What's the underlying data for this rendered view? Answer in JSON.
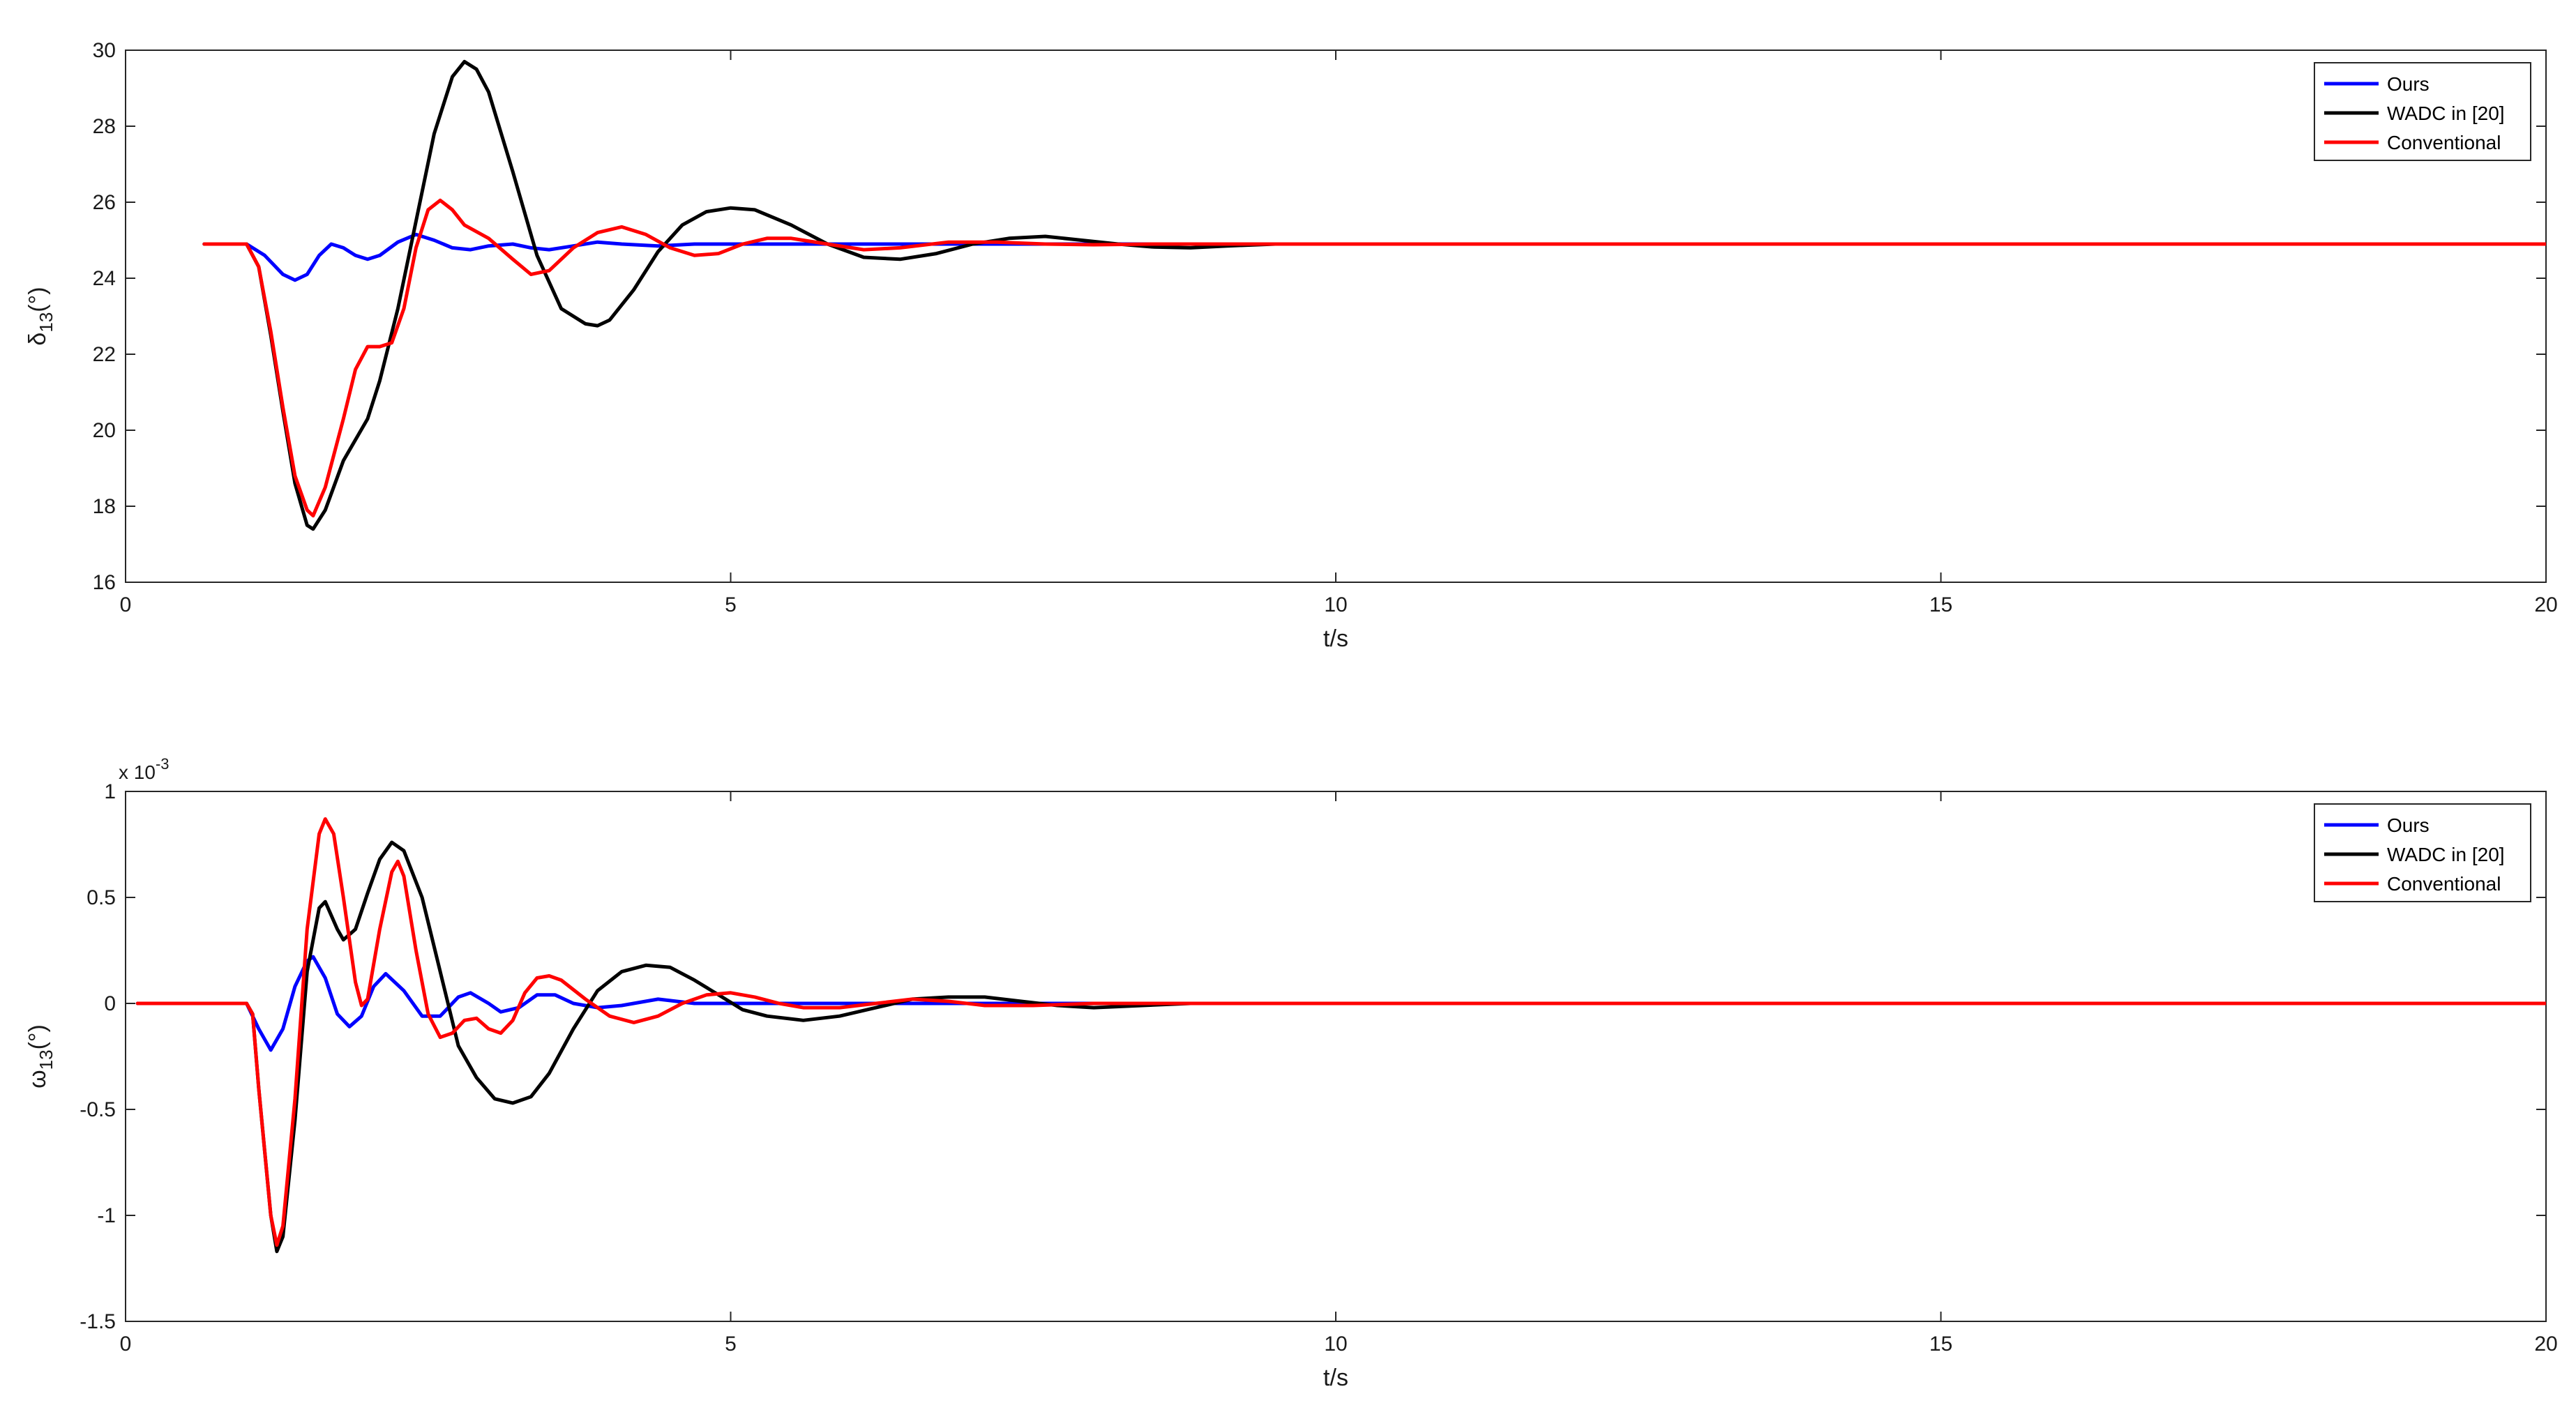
{
  "chart_data": [
    {
      "type": "line",
      "title": "",
      "xlabel": "t/s",
      "ylabel_main": "δ",
      "ylabel_sub": "13",
      "ylabel_tail": "(°)",
      "xlim": [
        0,
        20
      ],
      "ylim": [
        16,
        30
      ],
      "xticks": [
        0,
        5,
        10,
        15,
        20
      ],
      "yticks": [
        16,
        18,
        20,
        22,
        24,
        26,
        28,
        30
      ],
      "grid": false,
      "legend_position": "top-right",
      "series": [
        {
          "name": "Ours",
          "color": "#0000ff",
          "points": [
            [
              0.65,
              24.9
            ],
            [
              1.0,
              24.9
            ],
            [
              1.15,
              24.6
            ],
            [
              1.3,
              24.1
            ],
            [
              1.4,
              23.95
            ],
            [
              1.5,
              24.1
            ],
            [
              1.6,
              24.6
            ],
            [
              1.7,
              24.9
            ],
            [
              1.8,
              24.8
            ],
            [
              1.9,
              24.6
            ],
            [
              2.0,
              24.5
            ],
            [
              2.1,
              24.6
            ],
            [
              2.25,
              24.95
            ],
            [
              2.4,
              25.15
            ],
            [
              2.55,
              25.0
            ],
            [
              2.7,
              24.8
            ],
            [
              2.85,
              24.75
            ],
            [
              3.0,
              24.85
            ],
            [
              3.2,
              24.9
            ],
            [
              3.35,
              24.8
            ],
            [
              3.5,
              24.75
            ],
            [
              3.7,
              24.85
            ],
            [
              3.9,
              24.95
            ],
            [
              4.1,
              24.9
            ],
            [
              4.4,
              24.85
            ],
            [
              4.7,
              24.9
            ],
            [
              5.0,
              24.9
            ],
            [
              6.0,
              24.9
            ],
            [
              7.0,
              24.9
            ],
            [
              9.0,
              24.9
            ],
            [
              10.5,
              24.9
            ],
            [
              20.0,
              24.9
            ]
          ]
        },
        {
          "name": "WADC in [20]",
          "color": "#000000",
          "points": [
            [
              0.65,
              24.9
            ],
            [
              1.0,
              24.9
            ],
            [
              1.1,
              24.3
            ],
            [
              1.2,
              22.5
            ],
            [
              1.3,
              20.5
            ],
            [
              1.4,
              18.6
            ],
            [
              1.5,
              17.5
            ],
            [
              1.55,
              17.4
            ],
            [
              1.65,
              17.9
            ],
            [
              1.8,
              19.2
            ],
            [
              2.0,
              20.3
            ],
            [
              2.1,
              21.3
            ],
            [
              2.25,
              23.2
            ],
            [
              2.4,
              25.5
            ],
            [
              2.55,
              27.8
            ],
            [
              2.7,
              29.3
            ],
            [
              2.8,
              29.7
            ],
            [
              2.9,
              29.5
            ],
            [
              3.0,
              28.9
            ],
            [
              3.2,
              26.8
            ],
            [
              3.4,
              24.6
            ],
            [
              3.6,
              23.2
            ],
            [
              3.8,
              22.8
            ],
            [
              3.9,
              22.75
            ],
            [
              4.0,
              22.9
            ],
            [
              4.2,
              23.7
            ],
            [
              4.4,
              24.7
            ],
            [
              4.6,
              25.4
            ],
            [
              4.8,
              25.75
            ],
            [
              5.0,
              25.85
            ],
            [
              5.2,
              25.8
            ],
            [
              5.5,
              25.4
            ],
            [
              5.8,
              24.9
            ],
            [
              6.1,
              24.55
            ],
            [
              6.4,
              24.5
            ],
            [
              6.7,
              24.65
            ],
            [
              7.0,
              24.9
            ],
            [
              7.3,
              25.05
            ],
            [
              7.6,
              25.1
            ],
            [
              7.9,
              25.0
            ],
            [
              8.2,
              24.9
            ],
            [
              8.5,
              24.82
            ],
            [
              8.8,
              24.8
            ],
            [
              9.1,
              24.85
            ],
            [
              9.5,
              24.9
            ],
            [
              10.0,
              24.9
            ],
            [
              10.5,
              24.9
            ],
            [
              20.0,
              24.9
            ]
          ]
        },
        {
          "name": "Conventional",
          "color": "#ff0000",
          "points": [
            [
              0.65,
              24.9
            ],
            [
              1.0,
              24.9
            ],
            [
              1.1,
              24.3
            ],
            [
              1.2,
              22.6
            ],
            [
              1.3,
              20.6
            ],
            [
              1.4,
              18.8
            ],
            [
              1.5,
              17.9
            ],
            [
              1.55,
              17.75
            ],
            [
              1.65,
              18.5
            ],
            [
              1.8,
              20.3
            ],
            [
              1.9,
              21.6
            ],
            [
              2.0,
              22.2
            ],
            [
              2.1,
              22.2
            ],
            [
              2.2,
              22.3
            ],
            [
              2.3,
              23.2
            ],
            [
              2.4,
              24.8
            ],
            [
              2.5,
              25.8
            ],
            [
              2.6,
              26.05
            ],
            [
              2.7,
              25.8
            ],
            [
              2.8,
              25.4
            ],
            [
              3.0,
              25.05
            ],
            [
              3.2,
              24.5
            ],
            [
              3.35,
              24.1
            ],
            [
              3.5,
              24.2
            ],
            [
              3.7,
              24.8
            ],
            [
              3.9,
              25.2
            ],
            [
              4.1,
              25.35
            ],
            [
              4.3,
              25.15
            ],
            [
              4.5,
              24.8
            ],
            [
              4.7,
              24.6
            ],
            [
              4.9,
              24.65
            ],
            [
              5.1,
              24.9
            ],
            [
              5.3,
              25.05
            ],
            [
              5.5,
              25.05
            ],
            [
              5.8,
              24.9
            ],
            [
              6.1,
              24.75
            ],
            [
              6.4,
              24.8
            ],
            [
              6.8,
              24.95
            ],
            [
              7.2,
              24.95
            ],
            [
              7.6,
              24.9
            ],
            [
              8.0,
              24.88
            ],
            [
              8.5,
              24.9
            ],
            [
              10.0,
              24.9
            ],
            [
              20.0,
              24.9
            ]
          ]
        }
      ]
    },
    {
      "type": "line",
      "title": "",
      "xlabel": "t/s",
      "ylabel_main": "ω",
      "ylabel_sub": "13",
      "ylabel_tail": "(°)",
      "y_multiplier_base": "x 10",
      "y_multiplier_exp": "-3",
      "xlim": [
        0,
        20
      ],
      "ylim": [
        -1.5,
        1
      ],
      "xticks": [
        0,
        5,
        10,
        15,
        20
      ],
      "yticks": [
        -1.5,
        -1,
        -0.5,
        0,
        0.5,
        1
      ],
      "grid": false,
      "legend_position": "top-right",
      "series": [
        {
          "name": "Ours",
          "color": "#0000ff",
          "points": [
            [
              0.1,
              0
            ],
            [
              1.0,
              0
            ],
            [
              1.1,
              -0.12
            ],
            [
              1.2,
              -0.22
            ],
            [
              1.3,
              -0.12
            ],
            [
              1.4,
              0.08
            ],
            [
              1.5,
              0.2
            ],
            [
              1.55,
              0.22
            ],
            [
              1.65,
              0.12
            ],
            [
              1.75,
              -0.05
            ],
            [
              1.85,
              -0.11
            ],
            [
              1.95,
              -0.06
            ],
            [
              2.05,
              0.08
            ],
            [
              2.15,
              0.14
            ],
            [
              2.3,
              0.06
            ],
            [
              2.45,
              -0.06
            ],
            [
              2.6,
              -0.06
            ],
            [
              2.75,
              0.03
            ],
            [
              2.85,
              0.05
            ],
            [
              3.0,
              0.0
            ],
            [
              3.1,
              -0.04
            ],
            [
              3.25,
              -0.02
            ],
            [
              3.4,
              0.04
            ],
            [
              3.55,
              0.04
            ],
            [
              3.7,
              0.0
            ],
            [
              3.9,
              -0.02
            ],
            [
              4.1,
              -0.01
            ],
            [
              4.4,
              0.02
            ],
            [
              4.7,
              0.0
            ],
            [
              5.0,
              0.0
            ],
            [
              5.5,
              0.0
            ],
            [
              6.0,
              0.0
            ],
            [
              8.0,
              0.0
            ],
            [
              10.0,
              0.0
            ],
            [
              20.0,
              0.0
            ]
          ]
        },
        {
          "name": "WADC in [20]",
          "color": "#000000",
          "points": [
            [
              0.1,
              0
            ],
            [
              1.0,
              0
            ],
            [
              1.05,
              -0.05
            ],
            [
              1.1,
              -0.4
            ],
            [
              1.2,
              -1.0
            ],
            [
              1.25,
              -1.17
            ],
            [
              1.3,
              -1.1
            ],
            [
              1.4,
              -0.55
            ],
            [
              1.5,
              0.15
            ],
            [
              1.6,
              0.45
            ],
            [
              1.65,
              0.48
            ],
            [
              1.75,
              0.35
            ],
            [
              1.8,
              0.3
            ],
            [
              1.9,
              0.35
            ],
            [
              2.0,
              0.52
            ],
            [
              2.1,
              0.68
            ],
            [
              2.2,
              0.76
            ],
            [
              2.3,
              0.72
            ],
            [
              2.45,
              0.5
            ],
            [
              2.6,
              0.15
            ],
            [
              2.75,
              -0.2
            ],
            [
              2.9,
              -0.35
            ],
            [
              3.05,
              -0.45
            ],
            [
              3.2,
              -0.47
            ],
            [
              3.35,
              -0.44
            ],
            [
              3.5,
              -0.33
            ],
            [
              3.7,
              -0.12
            ],
            [
              3.9,
              0.06
            ],
            [
              4.1,
              0.15
            ],
            [
              4.3,
              0.18
            ],
            [
              4.5,
              0.17
            ],
            [
              4.7,
              0.11
            ],
            [
              4.9,
              0.04
            ],
            [
              5.1,
              -0.03
            ],
            [
              5.3,
              -0.06
            ],
            [
              5.6,
              -0.08
            ],
            [
              5.9,
              -0.06
            ],
            [
              6.2,
              -0.02
            ],
            [
              6.5,
              0.02
            ],
            [
              6.8,
              0.03
            ],
            [
              7.1,
              0.03
            ],
            [
              7.4,
              0.01
            ],
            [
              7.7,
              -0.01
            ],
            [
              8.0,
              -0.02
            ],
            [
              8.4,
              -0.01
            ],
            [
              8.8,
              0.0
            ],
            [
              9.5,
              0.0
            ],
            [
              20.0,
              0.0
            ]
          ]
        },
        {
          "name": "Conventional",
          "color": "#ff0000",
          "points": [
            [
              0.1,
              0
            ],
            [
              1.0,
              0
            ],
            [
              1.05,
              -0.05
            ],
            [
              1.1,
              -0.4
            ],
            [
              1.2,
              -1.0
            ],
            [
              1.25,
              -1.14
            ],
            [
              1.3,
              -1.05
            ],
            [
              1.4,
              -0.45
            ],
            [
              1.5,
              0.35
            ],
            [
              1.6,
              0.8
            ],
            [
              1.65,
              0.87
            ],
            [
              1.72,
              0.8
            ],
            [
              1.8,
              0.5
            ],
            [
              1.9,
              0.1
            ],
            [
              1.95,
              -0.01
            ],
            [
              2.0,
              0.02
            ],
            [
              2.1,
              0.35
            ],
            [
              2.2,
              0.62
            ],
            [
              2.25,
              0.67
            ],
            [
              2.3,
              0.6
            ],
            [
              2.4,
              0.25
            ],
            [
              2.5,
              -0.05
            ],
            [
              2.6,
              -0.16
            ],
            [
              2.7,
              -0.14
            ],
            [
              2.8,
              -0.08
            ],
            [
              2.9,
              -0.07
            ],
            [
              3.0,
              -0.12
            ],
            [
              3.1,
              -0.14
            ],
            [
              3.2,
              -0.08
            ],
            [
              3.3,
              0.05
            ],
            [
              3.4,
              0.12
            ],
            [
              3.5,
              0.13
            ],
            [
              3.6,
              0.11
            ],
            [
              3.8,
              0.02
            ],
            [
              4.0,
              -0.06
            ],
            [
              4.2,
              -0.09
            ],
            [
              4.4,
              -0.06
            ],
            [
              4.6,
              0.0
            ],
            [
              4.8,
              0.04
            ],
            [
              5.0,
              0.05
            ],
            [
              5.2,
              0.03
            ],
            [
              5.4,
              0.0
            ],
            [
              5.6,
              -0.02
            ],
            [
              5.9,
              -0.02
            ],
            [
              6.2,
              0.0
            ],
            [
              6.5,
              0.02
            ],
            [
              6.8,
              0.01
            ],
            [
              7.1,
              -0.01
            ],
            [
              7.5,
              -0.01
            ],
            [
              8.0,
              0.0
            ],
            [
              8.5,
              0.0
            ],
            [
              10.0,
              0.0
            ],
            [
              20.0,
              0.0
            ]
          ]
        }
      ]
    }
  ]
}
